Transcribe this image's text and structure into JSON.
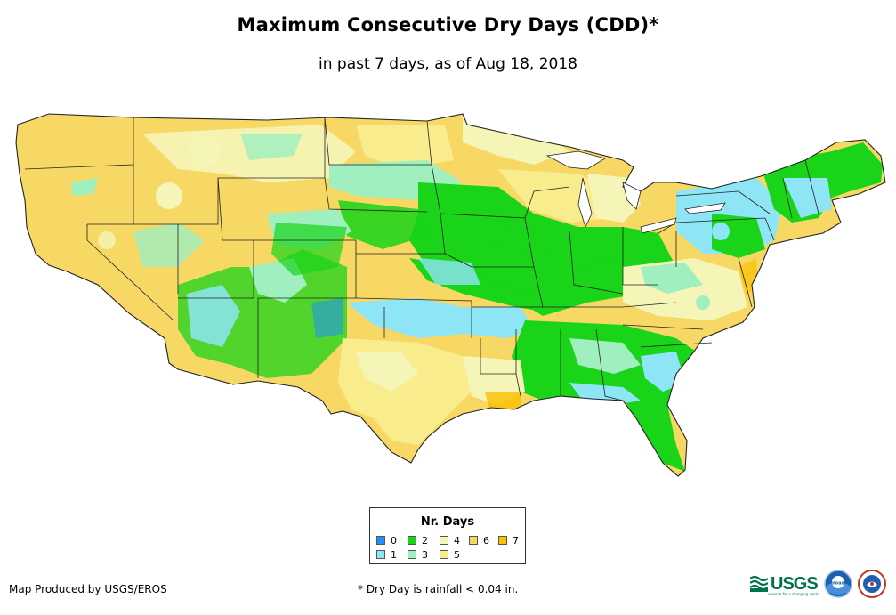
{
  "title": "Maximum Consecutive Dry Days (CDD)*",
  "subtitle": "in past 7 days, as of Aug 18, 2018",
  "legend": {
    "title": "Nr. Days",
    "items": [
      {
        "label": "0",
        "color": "#1e90ff"
      },
      {
        "label": "1",
        "color": "#8ee5f5"
      },
      {
        "label": "2",
        "color": "#19d419"
      },
      {
        "label": "3",
        "color": "#9fefbf"
      },
      {
        "label": "4",
        "color": "#f5f5b8"
      },
      {
        "label": "5",
        "color": "#f8ec8c"
      },
      {
        "label": "6",
        "color": "#f7d865"
      },
      {
        "label": "7",
        "color": "#f9c100"
      }
    ]
  },
  "credit": "Map Produced by USGS/EROS",
  "footnote": "* Dry Day is rainfall < 0.04 in.",
  "logos": {
    "usgs": "USGS",
    "usgs_tagline": "science for a changing world",
    "noaa": "noaa",
    "nws": "National Weather Service"
  }
}
